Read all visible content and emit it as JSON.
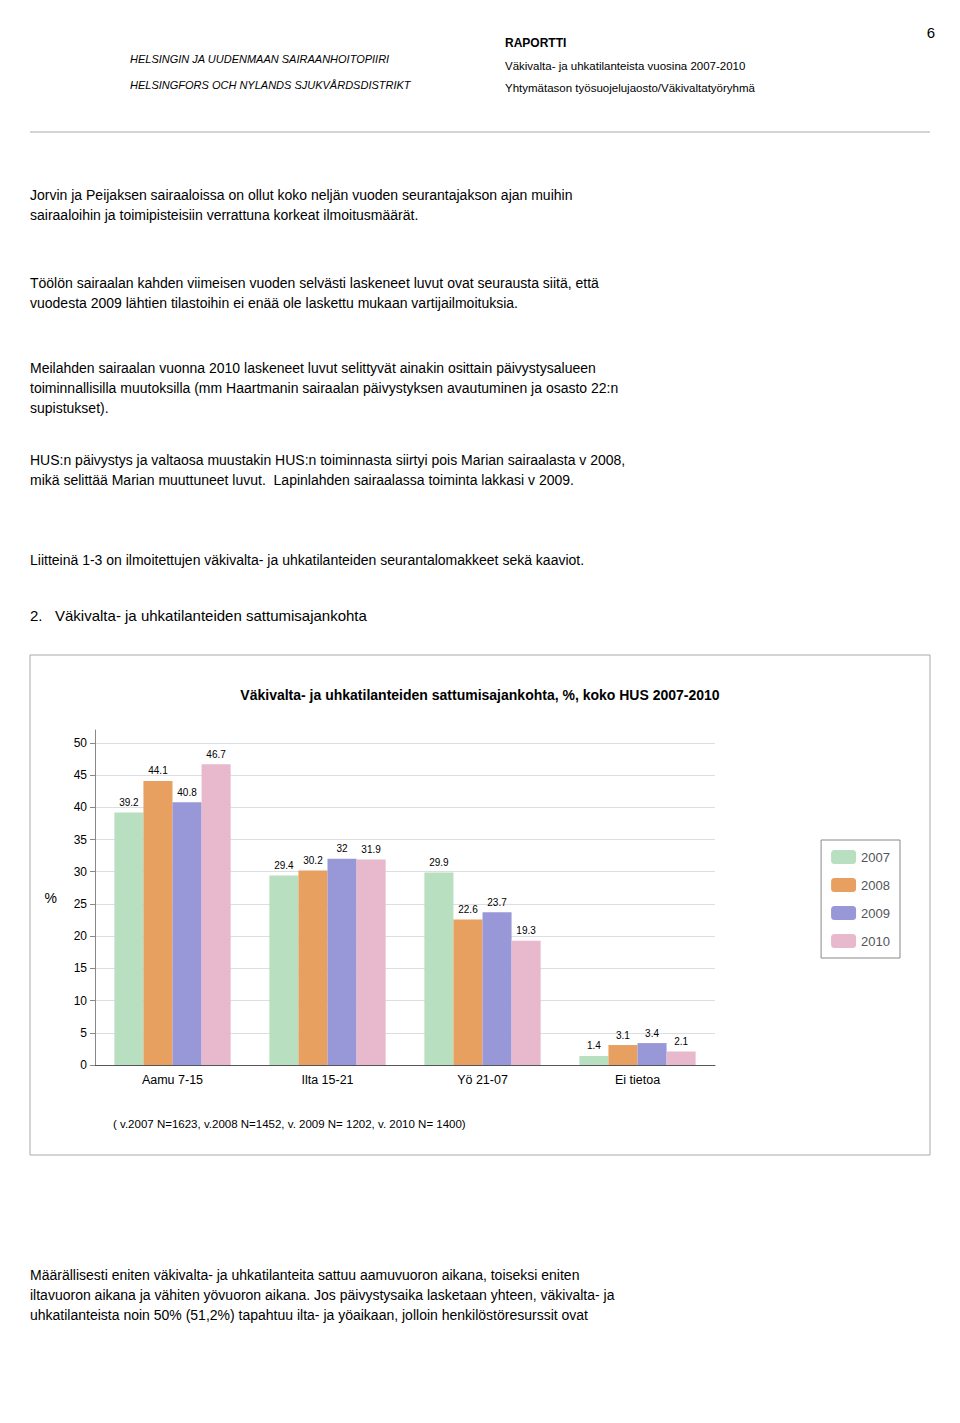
{
  "chart_data": {
    "type": "bar",
    "title": "Väkivalta- ja uhkatilanteiden sattumisajankohta, %, koko HUS 2007-2010",
    "categories": [
      "Aamu 7-15",
      "Ilta 15-21",
      "Yö 21-07",
      "Ei tietoa"
    ],
    "series": [
      {
        "name": "2007",
        "color": "#b8dfc0",
        "values": [
          39.2,
          29.4,
          29.9,
          1.4
        ]
      },
      {
        "name": "2008",
        "color": "#e8a060",
        "values": [
          44.1,
          30.2,
          22.6,
          3.1
        ]
      },
      {
        "name": "2009",
        "color": "#9898d8",
        "values": [
          40.8,
          32.0,
          23.7,
          3.4
        ]
      },
      {
        "name": "2010",
        "color": "#e8b8cc",
        "values": [
          46.7,
          31.9,
          19.3,
          2.1
        ]
      }
    ],
    "ylabel": "%",
    "ylim": [
      0,
      52
    ],
    "yticks": [
      0,
      5,
      10,
      15,
      20,
      25,
      30,
      35,
      40,
      45,
      50
    ],
    "grid": true,
    "legend": "right",
    "data_labels": true,
    "annotations": [
      "( v.2007 N=1623, v.2008 N=1452, v. 2009 N= 1202, v. 2010 N= 1400)"
    ]
  },
  "page_texts": [
    "6",
    "HELSINGIN JA UUDENMAAN SAIRAANHOITOPIIRI",
    "HELSINGFORS OCH NYLANDS SJUKVÅRDSDISTRIKT",
    "RAPORTTI",
    "Väkivalta- ja uhkatilanteista vuosina 2007-2010",
    "Yhtymätason työsuojelujaosto/Väkivaltatyöryhmä",
    "Jorvin ja Peijaksen sairaaloissa on ollut koko neljän vuoden seurantajakson ajan muihin\nsairaaloihin ja toimipisteisiin verrattuna korkeat ilmoitusmäärät.",
    "Töölön sairaalan kahden viimeisen vuoden selvästi laskeneet luvut ovat seurausta siitä, että\nvuodesta 2009 lähtien tilastoihin ei enää ole laskettu mukaan vartijailmoituksia.",
    "Meilahden sairaalan vuonna 2010 laskeneet luvut selittyvät ainakin osittain päivystysalueen\ntoiminnallisilla muutoksilla (mm Haartmanin sairaalan päivystyksen avautuminen ja osasto 22:n\nsupistukset).",
    "HUS:n päivystys ja valtaosa muustakin HUS:n toiminnasta siirtyi pois Marian sairaalasta v 2008,\nmikä selittää Marian muuttuneet luvut.  Lapinlahden sairaalassa toiminta lakkasi v 2009.",
    "Liitteinä 1-3 on ilmoitettujen väkivalta- ja uhkatilanteiden seurantalomakkeet sekä kaaviot.",
    "2.   Väkivalta- ja uhkatilanteiden sattumisajankohta",
    "Määrällisesti eniten väkivalta- ja uhkatilanteita sattuu aamuvuoron aikana, toiseksi eniten\niltavuoron aikana ja vähiten yövuoron aikana. Jos päivystysaika lasketaan yhteen, väkivalta- ja\nuhkatilanteista noin 50% (51,2%) tapahtuu ilta- ja yöaikaan, jolloin henkilöstöresurssit ovat"
  ]
}
